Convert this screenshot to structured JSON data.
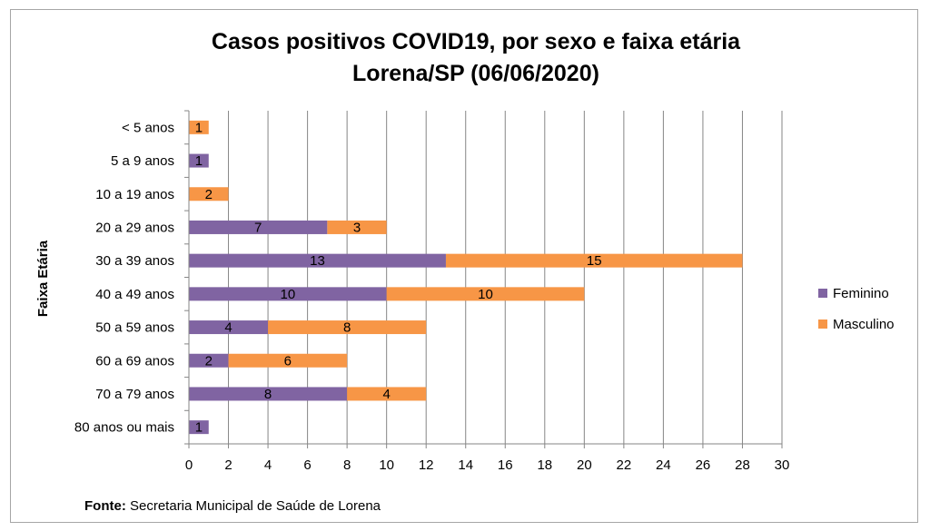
{
  "chart_data": {
    "type": "bar",
    "orientation": "horizontal",
    "stacked": true,
    "title": "Casos positivos COVID19, por sexo e faixa etária",
    "subtitle": "Lorena/SP (06/06/2020)",
    "ylabel": "Faixa Etária",
    "xlabel": "",
    "xlim": [
      0,
      30
    ],
    "xticks": [
      0,
      2,
      4,
      6,
      8,
      10,
      12,
      14,
      16,
      18,
      20,
      22,
      24,
      26,
      28,
      30
    ],
    "grid": true,
    "legend_position": "right",
    "categories": [
      "< 5 anos",
      "5 a 9 anos",
      "10 a 19 anos",
      "20 a 29 anos",
      "30 a 39 anos",
      "40 a 49 anos",
      "50 a 59 anos",
      "60 a 69 anos",
      "70 a 79 anos",
      "80 anos ou mais"
    ],
    "series": [
      {
        "name": "Feminino",
        "color": "#8064a2",
        "values": [
          0,
          1,
          0,
          7,
          13,
          10,
          4,
          2,
          8,
          1
        ]
      },
      {
        "name": "Masculino",
        "color": "#f79646",
        "values": [
          1,
          0,
          2,
          3,
          15,
          10,
          8,
          6,
          4,
          0
        ]
      }
    ]
  },
  "source": {
    "label": "Fonte:",
    "text": " Secretaria Municipal de Saúde de Lorena"
  }
}
